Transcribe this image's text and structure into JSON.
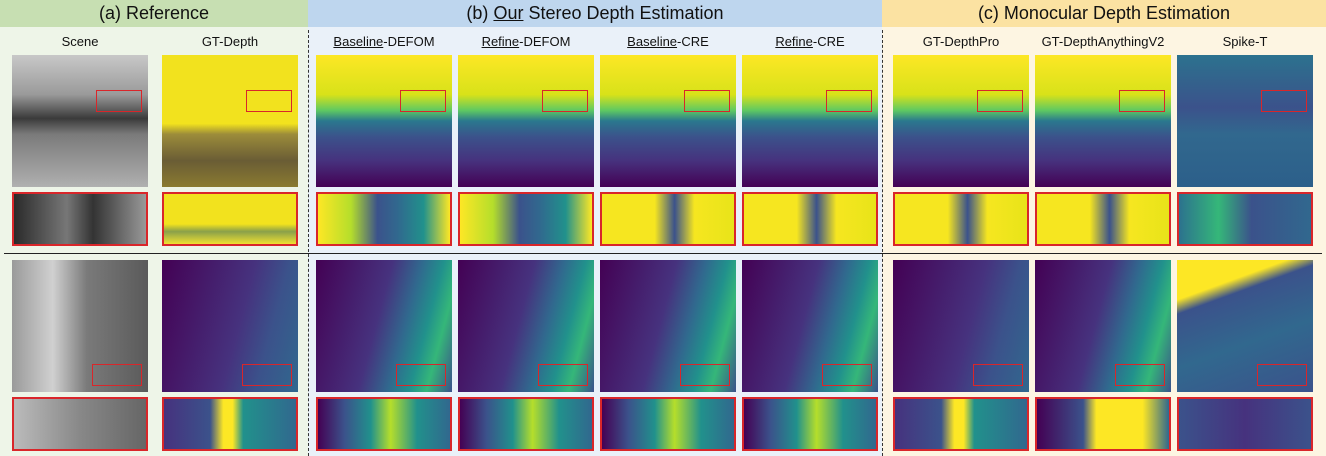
{
  "groups": [
    {
      "title": "(a) Reference"
    },
    {
      "prefix": "(b)",
      "underlined": "Our",
      "suffix": "Stereo Depth Estimation"
    },
    {
      "title": "(c) Monocular Depth Estimation"
    }
  ],
  "columns": [
    {
      "label": "Scene"
    },
    {
      "label": "GT-Depth"
    },
    {
      "underlined": "Baseline",
      "suffix": "-DEFOM"
    },
    {
      "underlined": "Refine",
      "suffix": "-DEFOM"
    },
    {
      "underlined": "Baseline",
      "suffix": "-CRE"
    },
    {
      "underlined": "Refine",
      "suffix": "-CRE"
    },
    {
      "label": "GT-DepthPro"
    },
    {
      "label": "GT-DepthAnythingV2"
    },
    {
      "label": "Spike-T"
    }
  ]
}
